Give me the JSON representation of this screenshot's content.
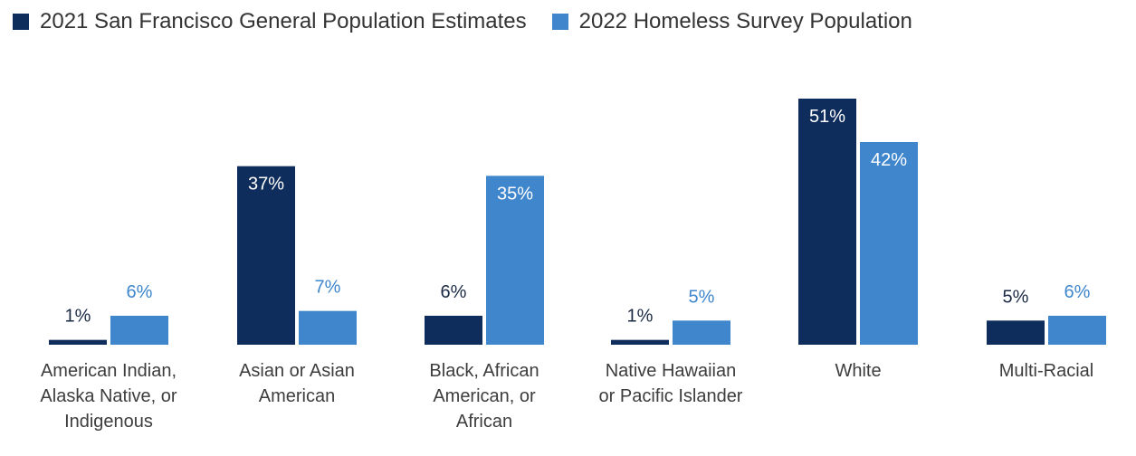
{
  "chart_data": {
    "type": "bar",
    "categories": [
      "American Indian, Alaska Native, or Indigenous",
      "Asian or Asian American",
      "Black, African American, or African",
      "Native Hawaiian or Pacific Islander",
      "White",
      "Multi-Racial"
    ],
    "category_lines": [
      [
        "American Indian,",
        "Alaska Native, or",
        "Indigenous"
      ],
      [
        "Asian or Asian",
        "American"
      ],
      [
        "Black, African",
        "American, or",
        "African"
      ],
      [
        "Native Hawaiian",
        "or Pacific Islander"
      ],
      [
        "White"
      ],
      [
        "Multi-Racial"
      ]
    ],
    "series": [
      {
        "name": "2021 San Francisco General Population Estimates",
        "color": "#0f2d5c",
        "values": [
          1,
          37,
          6,
          1,
          51,
          5
        ],
        "labels": [
          "1%",
          "37%",
          "6%",
          "1%",
          "51%",
          "5%"
        ]
      },
      {
        "name": "2022 Homeless Survey Population",
        "color": "#3f86cc",
        "values": [
          6,
          7,
          35,
          5,
          42,
          6
        ],
        "labels": [
          "6%",
          "7%",
          "35%",
          "5%",
          "42%",
          "6%"
        ]
      }
    ],
    "ylim": [
      0,
      51
    ],
    "grid": false,
    "legend": "top-left",
    "unit": "%"
  }
}
